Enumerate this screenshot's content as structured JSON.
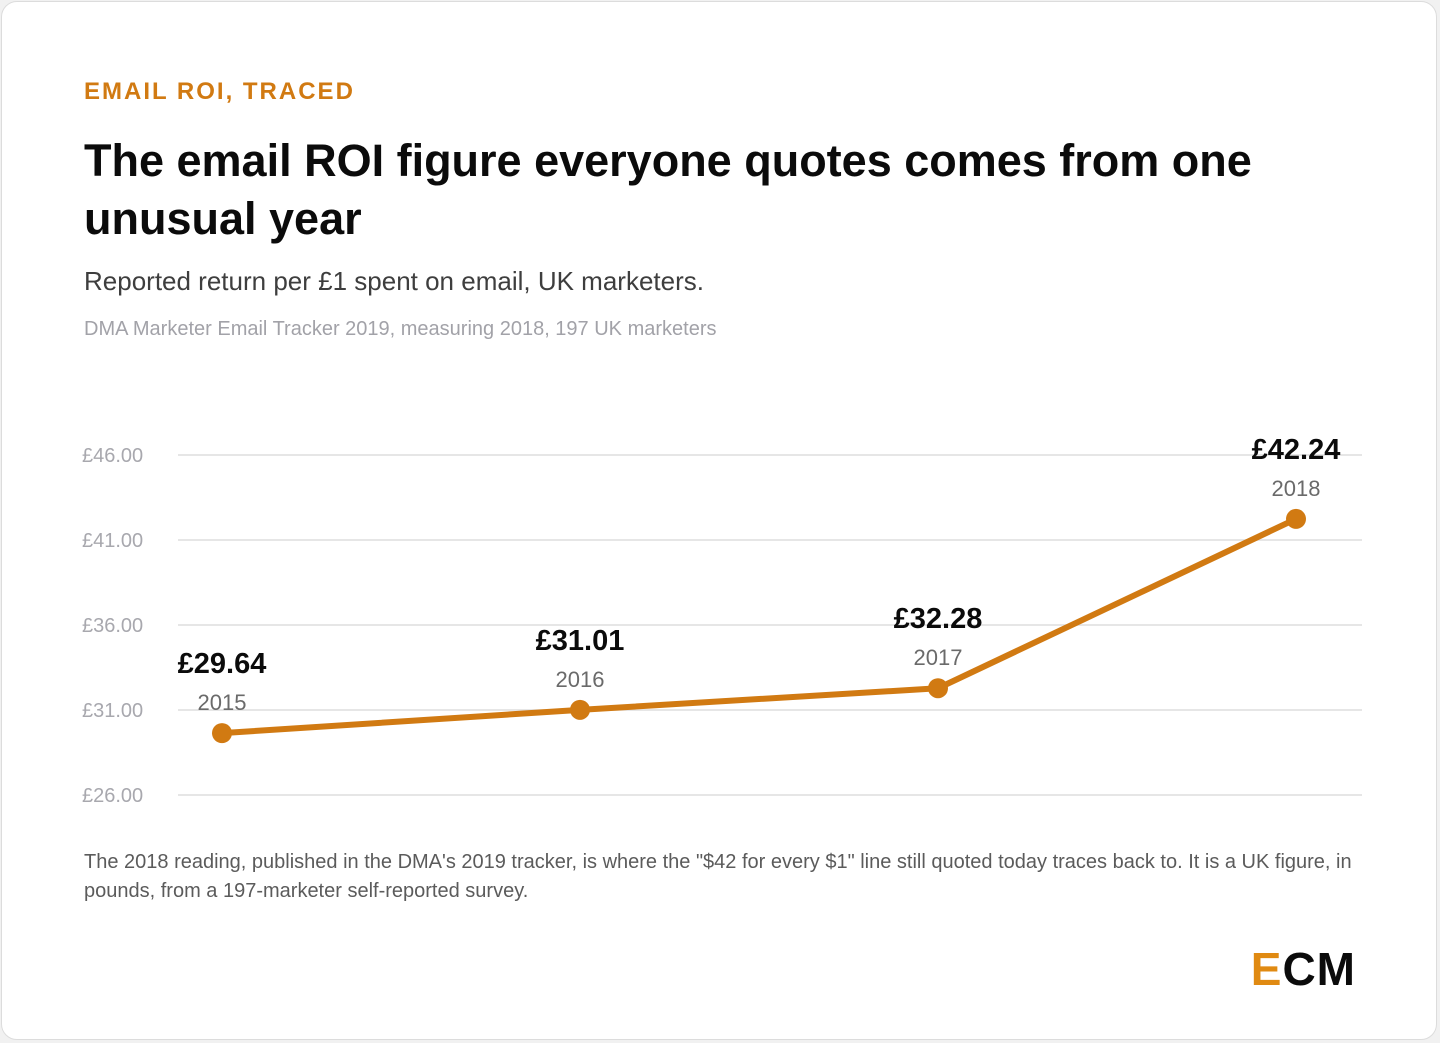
{
  "eyebrow": "EMAIL ROI, TRACED",
  "title": "The email ROI figure everyone quotes comes from one unusual year",
  "subtitle": "Reported return per £1 spent on email, UK marketers.",
  "source": "DMA Marketer Email Tracker 2019, measuring 2018, 197 UK marketers",
  "note": "The 2018 reading, published in the DMA's 2019 tracker, is where the \"$42 for every $1\" line still quoted today traces back to. It is a UK figure, in pounds, from a 197-marketer self-reported survey.",
  "logo": {
    "accent": "E",
    "rest": "CM"
  },
  "colors": {
    "accent": "#d17a12",
    "gridline": "#dedede",
    "tick_text": "#a8a8ae",
    "value_label": "#0b0b0b",
    "year_label": "#6a6a6a"
  },
  "chart_data": {
    "type": "line",
    "x": [
      "2015",
      "2016",
      "2017",
      "2018"
    ],
    "values": [
      29.64,
      31.01,
      32.28,
      42.24
    ],
    "data_labels": [
      "£29.64",
      "£31.01",
      "£32.28",
      "£42.24"
    ],
    "y_ticks": [
      26,
      31,
      36,
      41,
      46
    ],
    "y_tick_labels": [
      "£26.00",
      "£31.00",
      "£36.00",
      "£41.00",
      "£46.00"
    ],
    "ylim": [
      26,
      46
    ],
    "grid": true,
    "markers": true,
    "legend": "none"
  }
}
